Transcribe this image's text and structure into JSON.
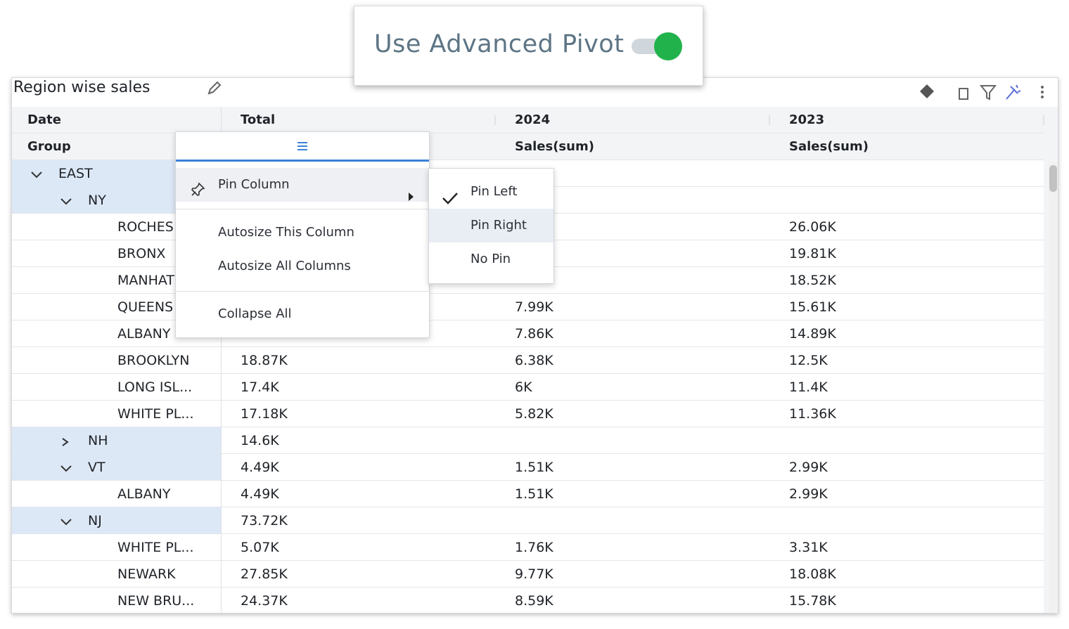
{
  "toggle": {
    "label": "Use Advanced Pivot",
    "on": true
  },
  "panel": {
    "title": "Region wise sales"
  },
  "table": {
    "header_rows": [
      [
        "Date",
        "Total",
        "2024",
        "2023"
      ],
      [
        "Group",
        null,
        "Sales(sum)",
        "Sales(sum)"
      ]
    ],
    "rows": [
      {
        "label": "EAST",
        "level": 0,
        "group": true,
        "expanded": true,
        "cells": [
          null,
          null,
          null
        ]
      },
      {
        "label": "NY",
        "level": 1,
        "group": true,
        "expanded": true,
        "cells": [
          null,
          null,
          null
        ]
      },
      {
        "label": "ROCHES",
        "level": 2,
        "cells": [
          null,
          null,
          "26.06K"
        ]
      },
      {
        "label": "BRONX",
        "level": 2,
        "cells": [
          null,
          null,
          "19.81K"
        ]
      },
      {
        "label": "MANHAT",
        "level": 2,
        "cells": [
          null,
          null,
          "18.52K"
        ]
      },
      {
        "label": "QUEENS",
        "level": 2,
        "cells": [
          null,
          "7.99K",
          "15.61K"
        ]
      },
      {
        "label": "ALBANY",
        "level": 2,
        "cells": [
          null,
          "7.86K",
          "14.89K"
        ]
      },
      {
        "label": "BROOKLYN",
        "level": 2,
        "cells": [
          "18.87K",
          "6.38K",
          "12.5K"
        ]
      },
      {
        "label": "LONG ISL...",
        "level": 2,
        "cells": [
          "17.4K",
          "6K",
          "11.4K"
        ]
      },
      {
        "label": "WHITE PL...",
        "level": 2,
        "cells": [
          "17.18K",
          "5.82K",
          "11.36K"
        ]
      },
      {
        "label": "NH",
        "level": 1,
        "group": true,
        "expanded": false,
        "cells": [
          "14.6K",
          null,
          null
        ]
      },
      {
        "label": "VT",
        "level": 1,
        "group": true,
        "expanded": true,
        "cells": [
          "4.49K",
          "1.51K",
          "2.99K"
        ]
      },
      {
        "label": "ALBANY",
        "level": 2,
        "cells": [
          "4.49K",
          "1.51K",
          "2.99K"
        ]
      },
      {
        "label": "NJ",
        "level": 1,
        "group": true,
        "expanded": true,
        "cells": [
          "73.72K",
          null,
          null
        ]
      },
      {
        "label": "WHITE PL...",
        "level": 2,
        "cells": [
          "5.07K",
          "1.76K",
          "3.31K"
        ]
      },
      {
        "label": "NEWARK",
        "level": 2,
        "cells": [
          "27.85K",
          "9.77K",
          "18.08K"
        ]
      },
      {
        "label": "NEW BRU...",
        "level": 2,
        "cells": [
          "24.37K",
          "8.59K",
          "15.78K"
        ]
      }
    ]
  },
  "context_menu": {
    "items": [
      "Pin Column",
      "Autosize This Column",
      "Autosize All Columns",
      "Collapse All"
    ],
    "submenu": {
      "items": [
        "Pin Left",
        "Pin Right",
        "No Pin"
      ],
      "checked": 0,
      "hovered": 1
    }
  }
}
